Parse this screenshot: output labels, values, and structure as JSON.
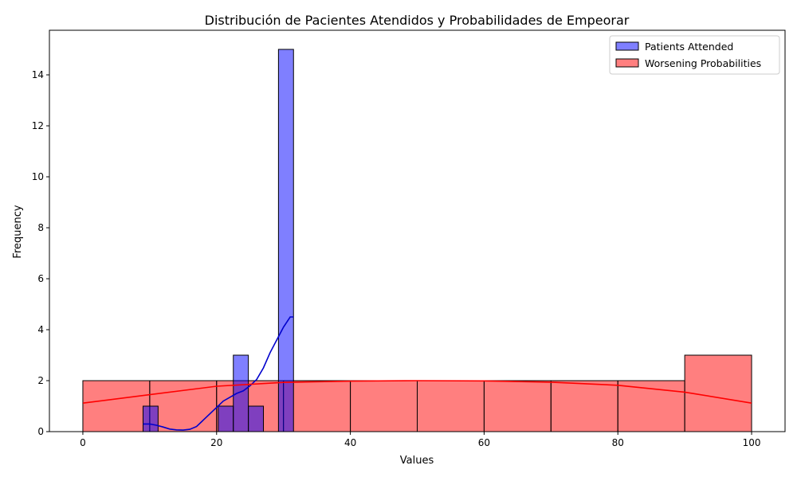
{
  "chart_data": {
    "type": "bar",
    "title": "Distribución de Pacientes Atendidos y Probabilidades de Empeorar",
    "xlabel": "Values",
    "ylabel": "Frequency",
    "xlim": [
      -5,
      105
    ],
    "ylim": [
      0,
      15.75
    ],
    "xticks": [
      "0",
      "20",
      "40",
      "60",
      "80",
      "100"
    ],
    "yticks": [
      "0",
      "2",
      "4",
      "6",
      "8",
      "10",
      "12",
      "14"
    ],
    "grid": false,
    "legend_position": "top-right",
    "series": [
      {
        "name": "Patients Attended",
        "color": "#0000ff",
        "line_color": "#0000cc",
        "bins": [
          {
            "x0": 9.0,
            "x1": 11.25,
            "count": 1
          },
          {
            "x0": 20.25,
            "x1": 22.5,
            "count": 1
          },
          {
            "x0": 22.5,
            "x1": 24.75,
            "count": 3
          },
          {
            "x0": 24.75,
            "x1": 27.0,
            "count": 1
          },
          {
            "x0": 29.25,
            "x1": 31.5,
            "count": 15
          }
        ],
        "kde": [
          [
            9.0,
            0.3
          ],
          [
            10.0,
            0.3
          ],
          [
            11.0,
            0.25
          ],
          [
            12.0,
            0.18
          ],
          [
            13.0,
            0.1
          ],
          [
            14.0,
            0.07
          ],
          [
            15.0,
            0.06
          ],
          [
            16.0,
            0.09
          ],
          [
            17.0,
            0.2
          ],
          [
            18.0,
            0.45
          ],
          [
            19.0,
            0.7
          ],
          [
            20.0,
            0.95
          ],
          [
            21.0,
            1.2
          ],
          [
            22.0,
            1.35
          ],
          [
            23.0,
            1.5
          ],
          [
            24.0,
            1.6
          ],
          [
            25.0,
            1.8
          ],
          [
            26.0,
            2.05
          ],
          [
            27.0,
            2.5
          ],
          [
            28.0,
            3.1
          ],
          [
            29.0,
            3.6
          ],
          [
            30.0,
            4.1
          ],
          [
            31.0,
            4.5
          ],
          [
            31.5,
            4.5
          ]
        ]
      },
      {
        "name": "Worsening Probabilities",
        "color": "#ff0000",
        "line_color": "#ff0000",
        "bins": [
          {
            "x0": 0,
            "x1": 10,
            "count": 2
          },
          {
            "x0": 10,
            "x1": 20,
            "count": 2
          },
          {
            "x0": 20,
            "x1": 30,
            "count": 2
          },
          {
            "x0": 30,
            "x1": 40,
            "count": 2
          },
          {
            "x0": 40,
            "x1": 50,
            "count": 2
          },
          {
            "x0": 50,
            "x1": 60,
            "count": 2
          },
          {
            "x0": 60,
            "x1": 70,
            "count": 2
          },
          {
            "x0": 70,
            "x1": 80,
            "count": 2
          },
          {
            "x0": 80,
            "x1": 90,
            "count": 2
          },
          {
            "x0": 90,
            "x1": 100,
            "count": 3
          }
        ],
        "kde": [
          [
            0,
            1.12
          ],
          [
            10,
            1.45
          ],
          [
            20,
            1.78
          ],
          [
            30,
            1.93
          ],
          [
            40,
            1.98
          ],
          [
            50,
            2.0
          ],
          [
            60,
            1.99
          ],
          [
            70,
            1.94
          ],
          [
            80,
            1.82
          ],
          [
            90,
            1.55
          ],
          [
            100,
            1.12
          ]
        ]
      }
    ]
  }
}
